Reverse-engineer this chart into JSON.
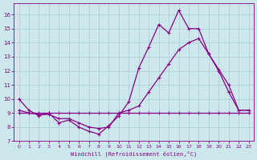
{
  "xlabel": "Windchill (Refroidissement éolien,°C)",
  "background_color": "#cce8ec",
  "grid_color": "#aaccd4",
  "line_color": "#880088",
  "xlim": [
    -0.5,
    23.5
  ],
  "ylim": [
    7,
    16.8
  ],
  "xticks": [
    0,
    1,
    2,
    3,
    4,
    5,
    6,
    7,
    8,
    9,
    10,
    11,
    12,
    13,
    14,
    15,
    16,
    17,
    18,
    19,
    20,
    21,
    22,
    23
  ],
  "yticks": [
    7,
    8,
    9,
    10,
    11,
    12,
    13,
    14,
    15,
    16
  ],
  "line1_x": [
    0,
    1,
    2,
    3,
    4,
    5,
    6,
    7,
    8,
    9,
    10,
    11,
    12,
    13,
    14,
    15,
    16,
    17,
    18,
    19,
    20,
    21,
    22,
    23
  ],
  "line1_y": [
    10.0,
    9.2,
    8.8,
    9.0,
    8.3,
    8.5,
    8.0,
    7.7,
    7.5,
    8.1,
    8.8,
    9.8,
    12.2,
    13.7,
    15.3,
    14.7,
    16.3,
    15.0,
    15.0,
    13.2,
    12.0,
    10.5,
    9.2,
    9.2
  ],
  "line2_x": [
    0,
    1,
    2,
    3,
    4,
    5,
    6,
    7,
    8,
    9,
    10,
    11,
    12,
    13,
    14,
    15,
    16,
    17,
    18,
    19,
    20,
    21,
    22,
    23
  ],
  "line2_y": [
    9.0,
    9.0,
    9.0,
    9.0,
    9.0,
    9.0,
    9.0,
    9.0,
    9.0,
    9.0,
    9.0,
    9.0,
    9.0,
    9.0,
    9.0,
    9.0,
    9.0,
    9.0,
    9.0,
    9.0,
    9.0,
    9.0,
    9.0,
    9.0
  ],
  "line3_x": [
    0,
    1,
    2,
    3,
    4,
    5,
    6,
    7,
    8,
    9,
    10,
    11,
    12,
    13,
    14,
    15,
    16,
    17,
    18,
    19,
    20,
    21,
    22,
    23
  ],
  "line3_y": [
    9.2,
    9.0,
    8.9,
    8.9,
    8.6,
    8.6,
    8.3,
    8.0,
    7.9,
    8.0,
    9.0,
    9.2,
    9.5,
    10.5,
    11.5,
    12.5,
    13.5,
    14.0,
    14.3,
    13.2,
    12.1,
    11.0,
    9.2,
    9.2
  ]
}
